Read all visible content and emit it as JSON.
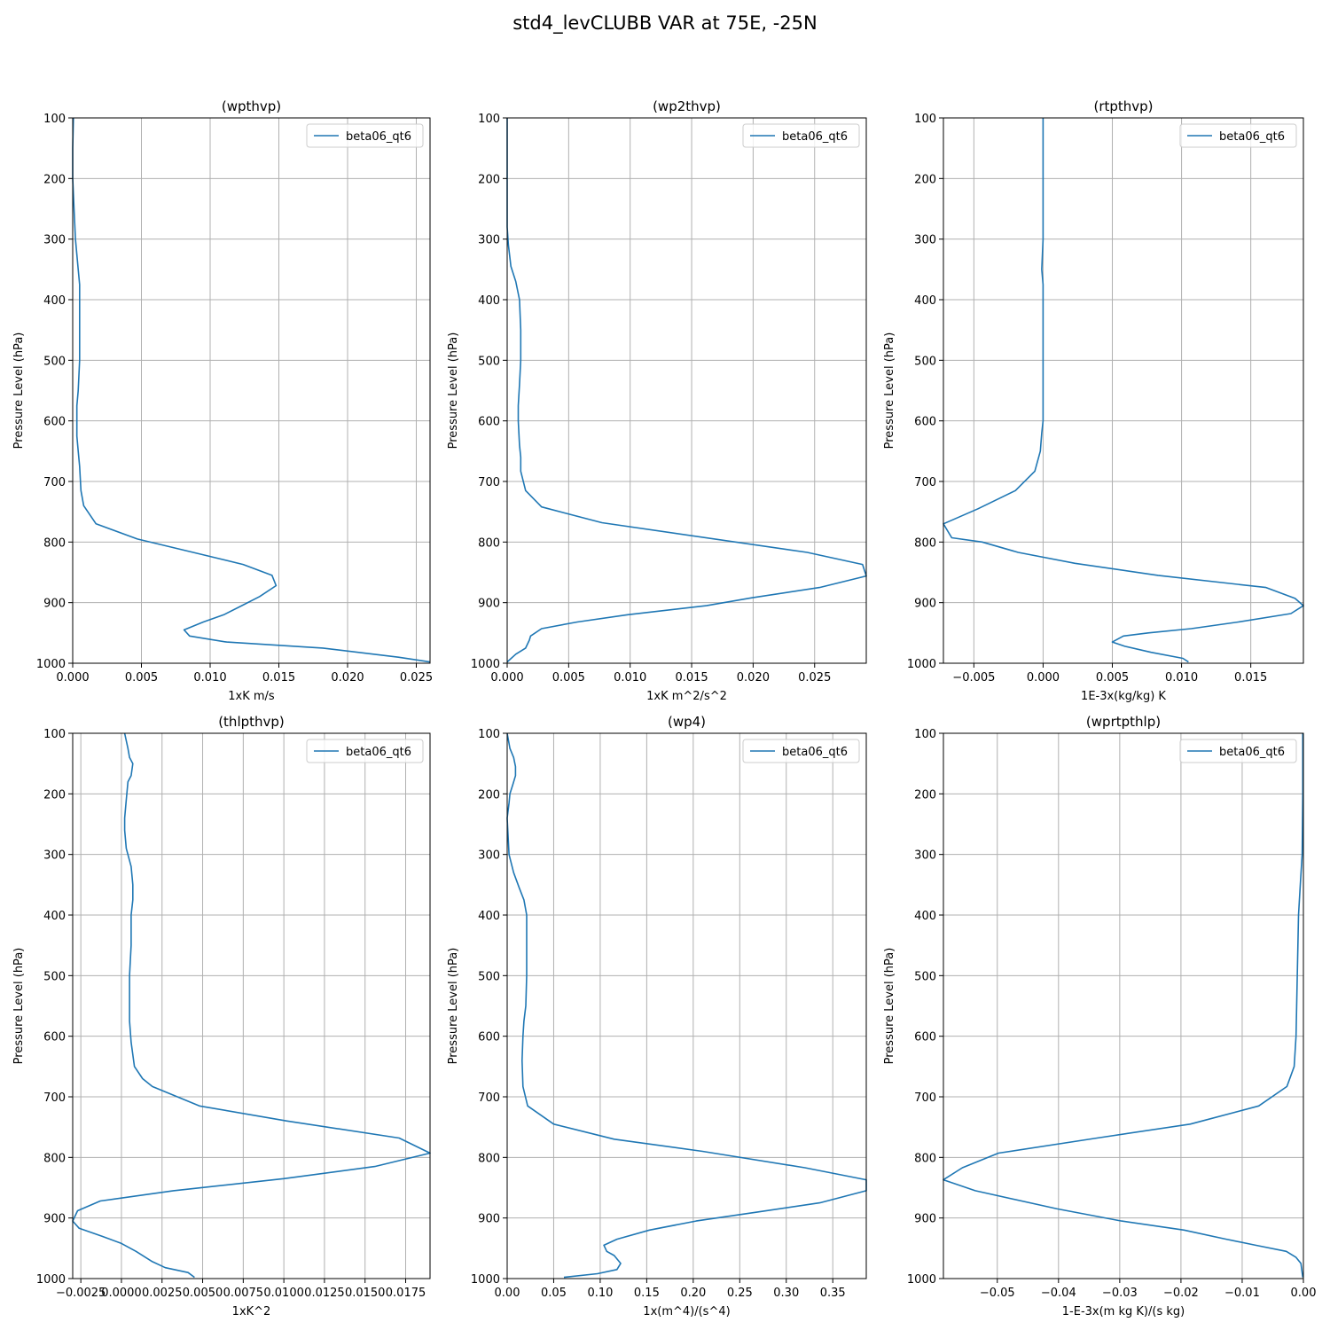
{
  "figure": {
    "title": "std4_levCLUBB VAR at 75E, -25N"
  },
  "chart_data": [
    {
      "type": "line",
      "title": "(wpthvp)",
      "xlabel": "1xK m/s",
      "ylabel": "Pressure Level (hPa)",
      "xlim": [
        0.0,
        0.026
      ],
      "ylim": [
        1000,
        100
      ],
      "xticks": [
        0.0,
        0.005,
        0.01,
        0.015,
        0.02,
        0.025
      ],
      "xtick_labels": [
        "0.000",
        "0.005",
        "0.010",
        "0.015",
        "0.020",
        "0.025"
      ],
      "yticks": [
        100,
        200,
        300,
        400,
        500,
        600,
        700,
        800,
        900,
        1000
      ],
      "grid": true,
      "legend": "upper right",
      "series": [
        {
          "name": "beta06_qt6",
          "color": "#1f77b4",
          "x": [
            5e-05,
            0.0,
            0.0,
            0.0001,
            0.0002,
            0.0004,
            0.0005,
            0.0005,
            0.0005,
            0.0005,
            0.0004,
            0.0003,
            0.0003,
            0.0003,
            0.0004,
            0.0005,
            0.0006,
            0.0008,
            0.0017,
            0.0047,
            0.0093,
            0.0124,
            0.0145,
            0.0148,
            0.0136,
            0.0123,
            0.011,
            0.0095,
            0.0081,
            0.0085,
            0.0112,
            0.0182,
            0.0237,
            0.026
          ],
          "y": [
            100,
            150,
            200,
            250,
            300,
            350,
            375,
            400,
            450,
            500,
            550,
            575,
            600,
            625,
            650,
            675,
            715,
            740,
            770,
            795,
            820,
            837,
            855,
            872,
            890,
            905,
            920,
            932,
            945,
            955,
            965,
            975,
            990,
            998
          ]
        }
      ]
    },
    {
      "type": "line",
      "title": "(wp2thvp)",
      "xlabel": "1xK m^2/s^2",
      "ylabel": "Pressure Level (hPa)",
      "xlim": [
        0.0,
        0.0292
      ],
      "ylim": [
        1000,
        100
      ],
      "xticks": [
        0.0,
        0.005,
        0.01,
        0.015,
        0.02,
        0.025
      ],
      "xtick_labels": [
        "0.000",
        "0.005",
        "0.010",
        "0.015",
        "0.020",
        "0.025"
      ],
      "yticks": [
        100,
        200,
        300,
        400,
        500,
        600,
        700,
        800,
        900,
        1000
      ],
      "grid": true,
      "legend": "upper right",
      "series": [
        {
          "name": "beta06_qt6",
          "color": "#1f77b4",
          "x": [
            0.0,
            0.0,
            0.0,
            0.0,
            0.0001,
            0.0003,
            0.0007,
            0.001,
            0.0011,
            0.0011,
            0.001,
            0.0009,
            0.0009,
            0.001,
            0.0011,
            0.0011,
            0.0015,
            0.0028,
            0.0077,
            0.0244,
            0.0289,
            0.0292,
            0.0254,
            0.0199,
            0.0162,
            0.0098,
            0.0057,
            0.0028,
            0.0019,
            0.0018,
            0.0015,
            0.0007,
            0.0
          ],
          "y": [
            100,
            200,
            250,
            280,
            310,
            345,
            370,
            400,
            450,
            500,
            540,
            575,
            600,
            640,
            660,
            683,
            715,
            742,
            768,
            817,
            837,
            856,
            875,
            892,
            905,
            920,
            932,
            943,
            955,
            962,
            975,
            985,
            998
          ]
        }
      ]
    },
    {
      "type": "line",
      "title": "(rtpthvp)",
      "xlabel": "1E-3x(kg/kg) K",
      "ylabel": "Pressure Level (hPa)",
      "xlim": [
        -0.0072,
        0.0188
      ],
      "ylim": [
        1000,
        100
      ],
      "xticks": [
        -0.005,
        0.0,
        0.005,
        0.01,
        0.015
      ],
      "xtick_labels": [
        "−0.005",
        "0.000",
        "0.005",
        "0.010",
        "0.015"
      ],
      "yticks": [
        100,
        200,
        300,
        400,
        500,
        600,
        700,
        800,
        900,
        1000
      ],
      "grid": true,
      "legend": "upper right",
      "series": [
        {
          "name": "beta06_qt6",
          "color": "#1f77b4",
          "x": [
            0.0,
            0.0,
            0.0,
            0.0,
            -0.0001,
            0.0,
            0.0,
            0.0,
            0.0,
            -0.0001,
            -0.0002,
            -0.0006,
            -0.002,
            -0.0047,
            -0.0072,
            -0.0066,
            -0.0044,
            -0.0018,
            0.0023,
            0.0083,
            0.0161,
            0.0182,
            0.0188,
            0.0179,
            0.0141,
            0.0107,
            0.0076,
            0.0058,
            0.005,
            0.0059,
            0.0078,
            0.0101,
            0.0105
          ],
          "y": [
            100,
            200,
            250,
            300,
            350,
            375,
            400,
            500,
            600,
            620,
            650,
            683,
            715,
            745,
            770,
            793,
            800,
            817,
            835,
            855,
            875,
            893,
            905,
            918,
            932,
            943,
            950,
            955,
            965,
            972,
            982,
            992,
            998
          ]
        }
      ]
    },
    {
      "type": "line",
      "title": "(thlpthvp)",
      "xlabel": "1xK^2",
      "ylabel": "Pressure Level (hPa)",
      "xlim": [
        -0.003,
        0.019
      ],
      "ylim": [
        1000,
        100
      ],
      "xticks": [
        -0.0025,
        0.0,
        0.0025,
        0.005,
        0.0075,
        0.01,
        0.0125,
        0.015,
        0.0175
      ],
      "xtick_labels": [
        "−0.0025",
        "0.0000",
        "0.0025",
        "0.0050",
        "0.0075",
        "0.0100",
        "0.0125",
        "0.0150",
        "0.0175"
      ],
      "yticks": [
        100,
        200,
        300,
        400,
        500,
        600,
        700,
        800,
        900,
        1000
      ],
      "grid": true,
      "legend": "upper right",
      "series": [
        {
          "name": "beta06_qt6",
          "color": "#1f77b4",
          "x": [
            0.0002,
            0.0004,
            0.0005,
            0.0007,
            0.0006,
            0.0004,
            0.0003,
            0.0002,
            0.0002,
            0.0003,
            0.0006,
            0.0007,
            0.0007,
            0.0006,
            0.0006,
            0.0005,
            0.0005,
            0.0005,
            0.0006,
            0.0008,
            0.0013,
            0.0019,
            0.0048,
            0.0102,
            0.0171,
            0.019,
            0.0156,
            0.01,
            0.0032,
            -0.0013,
            -0.0027,
            -0.003,
            -0.0026,
            -0.0012,
            0.0,
            0.0009,
            0.0019,
            0.0027,
            0.0041,
            0.0045
          ],
          "y": [
            100,
            125,
            140,
            150,
            170,
            180,
            210,
            240,
            260,
            290,
            320,
            350,
            375,
            400,
            450,
            500,
            550,
            575,
            610,
            650,
            670,
            683,
            715,
            740,
            768,
            793,
            815,
            835,
            855,
            872,
            888,
            905,
            917,
            930,
            942,
            955,
            972,
            982,
            990,
            998
          ]
        }
      ]
    },
    {
      "type": "line",
      "title": "(wp4)",
      "xlabel": "1x(m^4)/(s^4)",
      "ylabel": "Pressure Level (hPa)",
      "xlim": [
        0.0,
        0.386
      ],
      "ylim": [
        1000,
        100
      ],
      "xticks": [
        0.0,
        0.05,
        0.1,
        0.15,
        0.2,
        0.25,
        0.3,
        0.35
      ],
      "xtick_labels": [
        "0.00",
        "0.05",
        "0.10",
        "0.15",
        "0.20",
        "0.25",
        "0.30",
        "0.35"
      ],
      "yticks": [
        100,
        200,
        300,
        400,
        500,
        600,
        700,
        800,
        900,
        1000
      ],
      "grid": true,
      "legend": "upper right",
      "series": [
        {
          "name": "beta06_qt6",
          "color": "#1f77b4",
          "x": [
            0.0,
            0.003,
            0.007,
            0.009,
            0.009,
            0.006,
            0.003,
            0.002,
            0.0,
            0.002,
            0.007,
            0.013,
            0.018,
            0.021,
            0.021,
            0.021,
            0.02,
            0.018,
            0.017,
            0.016,
            0.017,
            0.022,
            0.05,
            0.115,
            0.21,
            0.32,
            0.386,
            0.386,
            0.336,
            0.27,
            0.203,
            0.153,
            0.118,
            0.104,
            0.107,
            0.115,
            0.122,
            0.118,
            0.097,
            0.061
          ],
          "y": [
            100,
            125,
            140,
            155,
            170,
            185,
            200,
            215,
            240,
            300,
            330,
            355,
            375,
            400,
            450,
            500,
            550,
            575,
            600,
            640,
            683,
            715,
            745,
            770,
            790,
            817,
            837,
            855,
            875,
            890,
            905,
            920,
            935,
            945,
            955,
            962,
            975,
            985,
            992,
            998
          ]
        }
      ]
    },
    {
      "type": "line",
      "title": "(wprtpthlp)",
      "xlabel": "1-E-3x(m kg K)/(s kg)",
      "ylabel": "Pressure Level (hPa)",
      "xlim": [
        -0.0588,
        0.0
      ],
      "ylim": [
        1000,
        100
      ],
      "xticks": [
        -0.05,
        -0.04,
        -0.03,
        -0.02,
        -0.01,
        0.0
      ],
      "xtick_labels": [
        "−0.05",
        "−0.04",
        "−0.03",
        "−0.02",
        "−0.01",
        "0.00"
      ],
      "yticks": [
        100,
        200,
        300,
        400,
        500,
        600,
        700,
        800,
        900,
        1000
      ],
      "grid": true,
      "legend": "upper right",
      "series": [
        {
          "name": "beta06_qt6",
          "color": "#1f77b4",
          "x": [
            -0.0001,
            -0.0001,
            -0.0002,
            -0.0005,
            -0.0008,
            -0.0009,
            -0.001,
            -0.0011,
            -0.0012,
            -0.0015,
            -0.0027,
            -0.0073,
            -0.0185,
            -0.0337,
            -0.0498,
            -0.0557,
            -0.0588,
            -0.0536,
            -0.0402,
            -0.0297,
            -0.0195,
            -0.0126,
            -0.0078,
            -0.0028,
            -0.0012,
            -0.0004,
            -0.0001
          ],
          "y": [
            100,
            200,
            300,
            350,
            400,
            450,
            500,
            550,
            600,
            650,
            683,
            715,
            745,
            768,
            793,
            817,
            837,
            855,
            885,
            905,
            920,
            935,
            945,
            955,
            965,
            975,
            998
          ]
        }
      ]
    }
  ]
}
